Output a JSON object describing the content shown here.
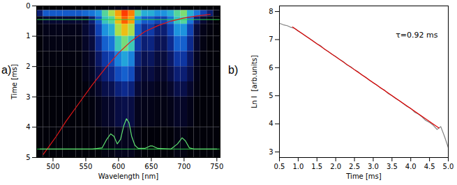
{
  "chart_data": [
    {
      "type": "heatmap",
      "title": "a)",
      "x_label": "Wavelength [nm]",
      "y_label": "Time [ms]",
      "xlim": [
        475,
        755
      ],
      "ylim": [
        0,
        5
      ],
      "xticks": [
        500,
        550,
        600,
        650,
        700,
        750
      ],
      "yticks": [
        0,
        1,
        2,
        3,
        4,
        5
      ],
      "heatmap": {
        "x_edges": [
          475,
          485,
          495,
          505,
          515,
          525,
          535,
          545,
          555,
          565,
          575,
          585,
          595,
          605,
          615,
          625,
          635,
          645,
          655,
          665,
          675,
          685,
          695,
          705,
          715,
          725,
          735,
          745,
          755
        ],
        "y_edges": [
          0,
          0.15,
          0.35,
          0.6,
          1,
          1.5,
          2,
          2.5,
          3,
          4,
          5
        ],
        "values": [
          [
            0.02,
            0.02,
            0.02,
            0.02,
            0.02,
            0.02,
            0.02,
            0.02,
            0.02,
            0.02,
            0.03,
            0.04,
            0.05,
            0.06,
            0.05,
            0.04,
            0.03,
            0.03,
            0.03,
            0.03,
            0.03,
            0.03,
            0.03,
            0.02,
            0.02,
            0.02,
            0.02,
            0.02
          ],
          [
            0.2,
            0.35,
            0.35,
            0.35,
            0.35,
            0.35,
            0.35,
            0.38,
            0.4,
            0.45,
            0.6,
            0.7,
            0.85,
            1.0,
            0.9,
            0.6,
            0.5,
            0.5,
            0.45,
            0.45,
            0.5,
            0.6,
            0.65,
            0.5,
            0.4,
            0.3,
            0.2,
            0.05
          ],
          [
            0.05,
            0.1,
            0.1,
            0.1,
            0.1,
            0.1,
            0.1,
            0.1,
            0.2,
            0.35,
            0.55,
            0.6,
            0.8,
            0.95,
            0.85,
            0.45,
            0.35,
            0.35,
            0.3,
            0.3,
            0.4,
            0.55,
            0.6,
            0.4,
            0.2,
            0.1,
            0.05,
            0.02
          ],
          [
            0.03,
            0.05,
            0.05,
            0.05,
            0.05,
            0.05,
            0.05,
            0.1,
            0.15,
            0.3,
            0.45,
            0.5,
            0.7,
            0.8,
            0.7,
            0.35,
            0.25,
            0.28,
            0.2,
            0.2,
            0.3,
            0.45,
            0.45,
            0.3,
            0.12,
            0.05,
            0.03,
            0.02
          ],
          [
            0.02,
            0.04,
            0.04,
            0.04,
            0.04,
            0.04,
            0.04,
            0.08,
            0.12,
            0.24,
            0.36,
            0.4,
            0.56,
            0.64,
            0.56,
            0.28,
            0.2,
            0.22,
            0.16,
            0.16,
            0.24,
            0.36,
            0.36,
            0.24,
            0.1,
            0.04,
            0.02,
            0.02
          ],
          [
            0.02,
            0.03,
            0.03,
            0.03,
            0.03,
            0.03,
            0.03,
            0.06,
            0.09,
            0.18,
            0.27,
            0.3,
            0.42,
            0.48,
            0.42,
            0.21,
            0.15,
            0.17,
            0.12,
            0.12,
            0.18,
            0.27,
            0.27,
            0.18,
            0.07,
            0.03,
            0.02,
            0.02
          ],
          [
            0.02,
            0.02,
            0.02,
            0.02,
            0.02,
            0.02,
            0.02,
            0.05,
            0.07,
            0.14,
            0.2,
            0.23,
            0.32,
            0.36,
            0.32,
            0.16,
            0.11,
            0.13,
            0.09,
            0.09,
            0.14,
            0.2,
            0.2,
            0.14,
            0.05,
            0.02,
            0.02,
            0.02
          ],
          [
            0.02,
            0.02,
            0.02,
            0.02,
            0.02,
            0.02,
            0.02,
            0.03,
            0.05,
            0.09,
            0.14,
            0.15,
            0.21,
            0.24,
            0.21,
            0.11,
            0.08,
            0.08,
            0.06,
            0.06,
            0.09,
            0.14,
            0.14,
            0.09,
            0.04,
            0.02,
            0.02,
            0.02
          ],
          [
            0.02,
            0.02,
            0.02,
            0.02,
            0.02,
            0.02,
            0.02,
            0.02,
            0.03,
            0.05,
            0.08,
            0.09,
            0.13,
            0.14,
            0.13,
            0.06,
            0.05,
            0.05,
            0.04,
            0.04,
            0.05,
            0.08,
            0.08,
            0.05,
            0.02,
            0.02,
            0.02,
            0.02
          ],
          [
            0.02,
            0.02,
            0.02,
            0.02,
            0.02,
            0.02,
            0.02,
            0.02,
            0.02,
            0.02,
            0.04,
            0.04,
            0.06,
            0.06,
            0.06,
            0.03,
            0.02,
            0.02,
            0.02,
            0.02,
            0.02,
            0.04,
            0.04,
            0.02,
            0.02,
            0.02,
            0.02,
            0.02
          ]
        ],
        "color_range": [
          0,
          1
        ]
      },
      "reference_lines": {
        "y": [
          0.45,
          4.72
        ],
        "color": "#2fd04a"
      },
      "series": [
        {
          "color": "#e01818",
          "x": [
            485,
            495,
            505,
            520,
            540,
            560,
            580,
            600,
            620,
            640,
            660,
            680,
            700,
            720,
            740
          ],
          "y": [
            4.9,
            4.6,
            4.3,
            3.8,
            3.2,
            2.6,
            2.05,
            1.55,
            1.15,
            0.85,
            0.65,
            0.5,
            0.4,
            0.33,
            0.28
          ]
        },
        {
          "color": "#5fe070",
          "x": [
            480,
            560,
            575,
            582,
            588,
            593,
            598,
            603,
            608,
            612,
            616,
            620,
            625,
            630,
            640,
            648,
            652,
            660,
            680,
            690,
            697,
            702,
            708,
            715,
            750
          ],
          "y": [
            4.72,
            4.72,
            4.68,
            4.4,
            4.22,
            4.3,
            4.55,
            4.4,
            3.95,
            3.72,
            3.85,
            4.3,
            4.6,
            4.7,
            4.7,
            4.62,
            4.62,
            4.7,
            4.72,
            4.55,
            4.35,
            4.45,
            4.68,
            4.72,
            4.72
          ]
        }
      ]
    },
    {
      "type": "line",
      "title": "b)",
      "x_label": "Time [ms]",
      "y_label": "Ln I  [arb.units]",
      "xlim": [
        0.5,
        5.0
      ],
      "ylim": [
        2.8,
        8.2
      ],
      "xticks": [
        0.5,
        {
          "value": 1,
          "label": "1.0"
        },
        1.5,
        {
          "value": 2,
          "label": "2.0"
        },
        2.5,
        {
          "value": 3,
          "label": "3.0"
        },
        3.5,
        {
          "value": 4,
          "label": "4.0"
        },
        4.5,
        {
          "value": 5,
          "label": "5.0"
        }
      ],
      "yticks": [
        3,
        4,
        5,
        6,
        7,
        8
      ],
      "series": [
        {
          "color": "#808080",
          "x": [
            0.5,
            0.6,
            0.7,
            0.8,
            0.9,
            1.0,
            1.1,
            1.2,
            1.3,
            1.4,
            1.5,
            1.6,
            1.7,
            1.8,
            1.9,
            2.0,
            2.1,
            2.2,
            2.3,
            2.4,
            2.5,
            2.6,
            2.7,
            2.8,
            2.9,
            3.0,
            3.1,
            3.2,
            3.3,
            3.4,
            3.5,
            3.6,
            3.7,
            3.8,
            3.9,
            4.0,
            4.1,
            4.2,
            4.3,
            4.4,
            4.5,
            4.6,
            4.7,
            4.8,
            4.9,
            5.0
          ],
          "y": [
            7.58,
            7.53,
            7.5,
            7.44,
            7.4,
            7.3,
            7.22,
            7.13,
            7.04,
            6.95,
            6.85,
            6.78,
            6.66,
            6.58,
            6.48,
            6.4,
            6.3,
            6.22,
            6.1,
            6.03,
            5.93,
            5.85,
            5.74,
            5.66,
            5.55,
            5.46,
            5.38,
            5.27,
            5.2,
            5.08,
            5.0,
            4.9,
            4.82,
            4.72,
            4.62,
            4.55,
            4.42,
            4.35,
            4.25,
            4.12,
            4.05,
            3.95,
            3.8,
            3.9,
            3.55,
            3.15
          ]
        },
        {
          "color": "#e00000",
          "x": [
            0.85,
            4.75
          ],
          "y": [
            7.45,
            3.85
          ]
        }
      ],
      "annotations": [
        {
          "text": "τ=0.92 ms",
          "x": 3.6,
          "y": 7.15
        }
      ]
    }
  ]
}
